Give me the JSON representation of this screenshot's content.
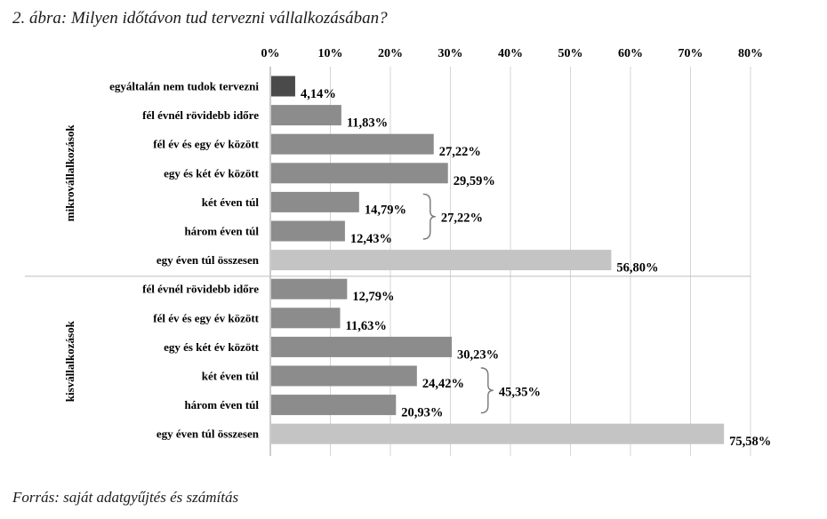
{
  "title": "2. ábra: Milyen időtávon tud tervezni vállalkozásában?",
  "source": "Forrás: saját adatgyűjtés és számítás",
  "chart_data": {
    "type": "bar",
    "orientation": "horizontal",
    "xlim": [
      0,
      80
    ],
    "ticks": [
      "0%",
      "10%",
      "20%",
      "30%",
      "40%",
      "50%",
      "60%",
      "70%",
      "80%"
    ],
    "grid": true,
    "groups": [
      {
        "name": "mikrovállalkozások",
        "bars": [
          {
            "label": "egyáltalán nem tudok tervezni",
            "value": 4.14,
            "text": "4,14%",
            "shade": "dark"
          },
          {
            "label": "fél évnél rövidebb időre",
            "value": 11.83,
            "text": "11,83%",
            "shade": "mid"
          },
          {
            "label": "fél év és egy év között",
            "value": 27.22,
            "text": "27,22%",
            "shade": "mid"
          },
          {
            "label": "egy és két év között",
            "value": 29.59,
            "text": "29,59%",
            "shade": "mid"
          },
          {
            "label": "két éven túl",
            "value": 14.79,
            "text": "14,79%",
            "shade": "mid"
          },
          {
            "label": "három éven túl",
            "value": 12.43,
            "text": "12,43%",
            "shade": "mid"
          },
          {
            "label": "egy éven túl összesen",
            "value": 56.8,
            "text": "56,80%",
            "shade": "light"
          }
        ],
        "brace_total": "27,22%"
      },
      {
        "name": "kisvállalkozások",
        "bars": [
          {
            "label": "fél évnél rövidebb időre",
            "value": 12.79,
            "text": "12,79%",
            "shade": "mid"
          },
          {
            "label": "fél év és egy év között",
            "value": 11.63,
            "text": "11,63%",
            "shade": "mid"
          },
          {
            "label": "egy és két év között",
            "value": 30.23,
            "text": "30,23%",
            "shade": "mid"
          },
          {
            "label": "két éven túl",
            "value": 24.42,
            "text": "24,42%",
            "shade": "mid"
          },
          {
            "label": "három éven túl",
            "value": 20.93,
            "text": "20,93%",
            "shade": "mid"
          },
          {
            "label": "egy éven túl összesen",
            "value": 75.58,
            "text": "75,58%",
            "shade": "light"
          }
        ],
        "brace_total": "45,35%"
      }
    ],
    "colors": {
      "dark": "#4a4a4a",
      "mid": "#8c8c8c",
      "light": "#c4c4c4",
      "grid": "#d6d6d6"
    }
  }
}
